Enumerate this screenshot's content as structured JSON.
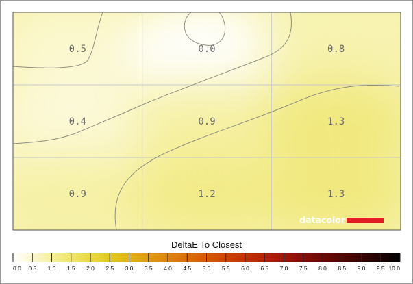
{
  "chart_data": {
    "type": "heatmap",
    "title": "",
    "xlabel": "",
    "ylabel": "",
    "grid": true,
    "rows": 3,
    "cols": 3,
    "values": [
      [
        0.5,
        0.0,
        0.8
      ],
      [
        0.4,
        0.9,
        1.3
      ],
      [
        0.9,
        1.2,
        1.3
      ]
    ],
    "labels": [
      [
        "0.5",
        "0.0",
        "0.8"
      ],
      [
        "0.4",
        "0.9",
        "1.3"
      ],
      [
        "0.9",
        "1.2",
        "1.3"
      ]
    ],
    "colorbar": {
      "title": "DeltaE To Closest",
      "min": 0.0,
      "max": 10.0,
      "ticks": [
        "0.0",
        "0.5",
        "1.0",
        "1.5",
        "2.0",
        "2.5",
        "3.0",
        "3.5",
        "4.0",
        "4.5",
        "5.0",
        "5.5",
        "6.0",
        "6.5",
        "7.0",
        "7.5",
        "8.0",
        "8.5",
        "9.0",
        "9.5",
        "10.0"
      ],
      "colors": [
        "#ffffff",
        "#fbf8cf",
        "#f5ef9c",
        "#efe56b",
        "#e9d93f",
        "#e3ca1e",
        "#e1b315",
        "#df9c10",
        "#dc850d",
        "#d96f0a",
        "#d55807",
        "#cf4305",
        "#c43004",
        "#b42204",
        "#9e1705",
        "#850f06",
        "#6b0a06",
        "#520705",
        "#380404",
        "#1d0202",
        "#000000"
      ]
    }
  },
  "branding": {
    "logo_text": "datacolor",
    "logo_color": "#e31e24"
  }
}
